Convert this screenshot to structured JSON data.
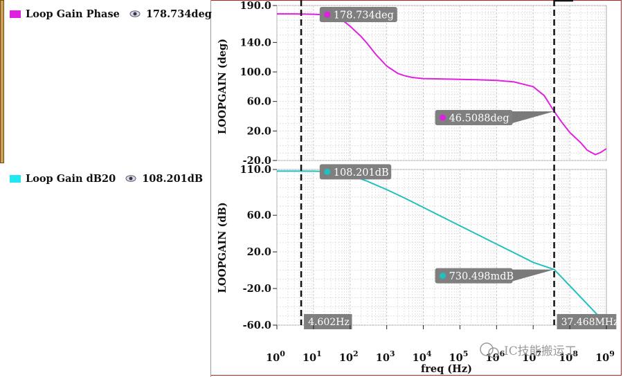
{
  "legend": [
    {
      "label": "Loop Gain Phase",
      "value": "178.734deg",
      "color": "#e020e0"
    },
    {
      "label": "Loop Gain dB20",
      "value": "108.201dB",
      "color": "#20d8d8"
    }
  ],
  "chart_data": [
    {
      "type": "line",
      "title": "",
      "xlabel": "freq (Hz)",
      "ylabel": "LOOPGAIN (deg)",
      "x_scale": "log",
      "xlim": [
        1,
        1000000000
      ],
      "ylim": [
        -20,
        190
      ],
      "yticks": [
        "190.0",
        "140.0",
        "100.0",
        "60.0",
        "20.0",
        "-20.0"
      ],
      "ytick_values": [
        190,
        140,
        100,
        60,
        20,
        -20
      ],
      "grid": true,
      "series": [
        {
          "name": "Loop Gain Phase",
          "color": "#e020e0",
          "x": [
            1,
            3,
            10,
            20,
            30,
            50,
            70,
            100,
            200,
            300,
            500,
            1000,
            2000,
            3000,
            5000,
            10000,
            30000,
            100000,
            300000,
            1000000,
            3000000,
            10000000,
            20000000,
            37468000,
            60000000,
            100000000,
            200000000,
            300000000,
            500000000,
            700000000,
            1000000000
          ],
          "y": [
            178.7,
            178.7,
            178.2,
            177.5,
            176,
            172,
            168,
            162,
            148,
            138,
            124,
            108,
            98,
            95,
            92.5,
            91,
            90.5,
            90,
            89.5,
            88.5,
            86.5,
            80,
            68,
            46.5,
            32,
            18,
            4,
            -6,
            -12,
            -9,
            -4
          ]
        }
      ],
      "markers": [
        {
          "label": "178.734deg",
          "x": 20,
          "y": 178.734
        },
        {
          "label": "46.5088deg",
          "x": 37468000,
          "y": 46.5088
        }
      ]
    },
    {
      "type": "line",
      "title": "",
      "xlabel": "freq (Hz)",
      "ylabel": "LOOPGAIN (dB)",
      "x_scale": "log",
      "xlim": [
        1,
        1000000000
      ],
      "ylim": [
        -60,
        110
      ],
      "yticks": [
        "110.0",
        "60.0",
        "20.0",
        "-20.0",
        "-60.0"
      ],
      "ytick_values": [
        110,
        60,
        20,
        -20,
        -60
      ],
      "grid": true,
      "series": [
        {
          "name": "Loop Gain dB20",
          "color": "#20c0c0",
          "x": [
            1,
            3,
            10,
            20,
            50,
            100,
            300,
            1000,
            3000,
            10000,
            30000,
            100000,
            300000,
            1000000,
            3000000,
            10000000,
            37468000,
            100000000,
            300000000,
            1000000000
          ],
          "y": [
            108.2,
            108.2,
            108.1,
            107.8,
            106.5,
            104,
            97,
            88,
            79,
            68.5,
            59,
            48.5,
            39,
            28.5,
            19,
            8.5,
            0.73,
            -17,
            -37,
            -59
          ]
        }
      ],
      "markers": [
        {
          "label": "108.201dB",
          "x": 20,
          "y": 108.201
        },
        {
          "label": "730.498mdB",
          "x": 37468000,
          "y": 0.730498
        }
      ]
    }
  ],
  "x_axis": {
    "ticks": [
      {
        "base": "10",
        "exp": "0"
      },
      {
        "base": "10",
        "exp": "1"
      },
      {
        "base": "10",
        "exp": "2"
      },
      {
        "base": "10",
        "exp": "3"
      },
      {
        "base": "10",
        "exp": "4"
      },
      {
        "base": "10",
        "exp": "5"
      },
      {
        "base": "10",
        "exp": "6"
      },
      {
        "base": "10",
        "exp": "7"
      },
      {
        "base": "10",
        "exp": "8"
      },
      {
        "base": "10",
        "exp": "9"
      }
    ]
  },
  "cursors": [
    {
      "x": 4.602,
      "label": "4.602Hz"
    },
    {
      "x": 37468000,
      "label": "37.468MHz"
    }
  ],
  "watermark": {
    "text": "IC技能搬运工"
  }
}
